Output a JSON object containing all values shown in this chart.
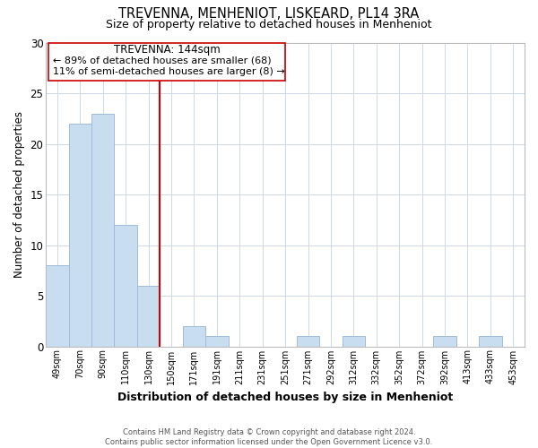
{
  "title": "TREVENNA, MENHENIOT, LISKEARD, PL14 3RA",
  "subtitle": "Size of property relative to detached houses in Menheniot",
  "xlabel": "Distribution of detached houses by size in Menheniot",
  "ylabel": "Number of detached properties",
  "bar_labels": [
    "49sqm",
    "70sqm",
    "90sqm",
    "110sqm",
    "130sqm",
    "150sqm",
    "171sqm",
    "191sqm",
    "211sqm",
    "231sqm",
    "251sqm",
    "271sqm",
    "292sqm",
    "312sqm",
    "332sqm",
    "352sqm",
    "372sqm",
    "392sqm",
    "413sqm",
    "433sqm",
    "453sqm"
  ],
  "bar_values": [
    8,
    22,
    23,
    12,
    6,
    0,
    2,
    1,
    0,
    0,
    0,
    1,
    0,
    1,
    0,
    0,
    0,
    1,
    0,
    1,
    0
  ],
  "bar_color": "#c8ddf0",
  "bar_edge_color": "#a0bcd8",
  "highlight_line_color": "#cc0000",
  "ylim": [
    0,
    30
  ],
  "yticks": [
    0,
    5,
    10,
    15,
    20,
    25,
    30
  ],
  "annotation_title": "TREVENNA: 144sqm",
  "annotation_line1": "← 89% of detached houses are smaller (68)",
  "annotation_line2": "11% of semi-detached houses are larger (8) →",
  "footer_line1": "Contains HM Land Registry data © Crown copyright and database right 2024.",
  "footer_line2": "Contains public sector information licensed under the Open Government Licence v3.0.",
  "background_color": "#ffffff",
  "grid_color": "#cdd8e3"
}
